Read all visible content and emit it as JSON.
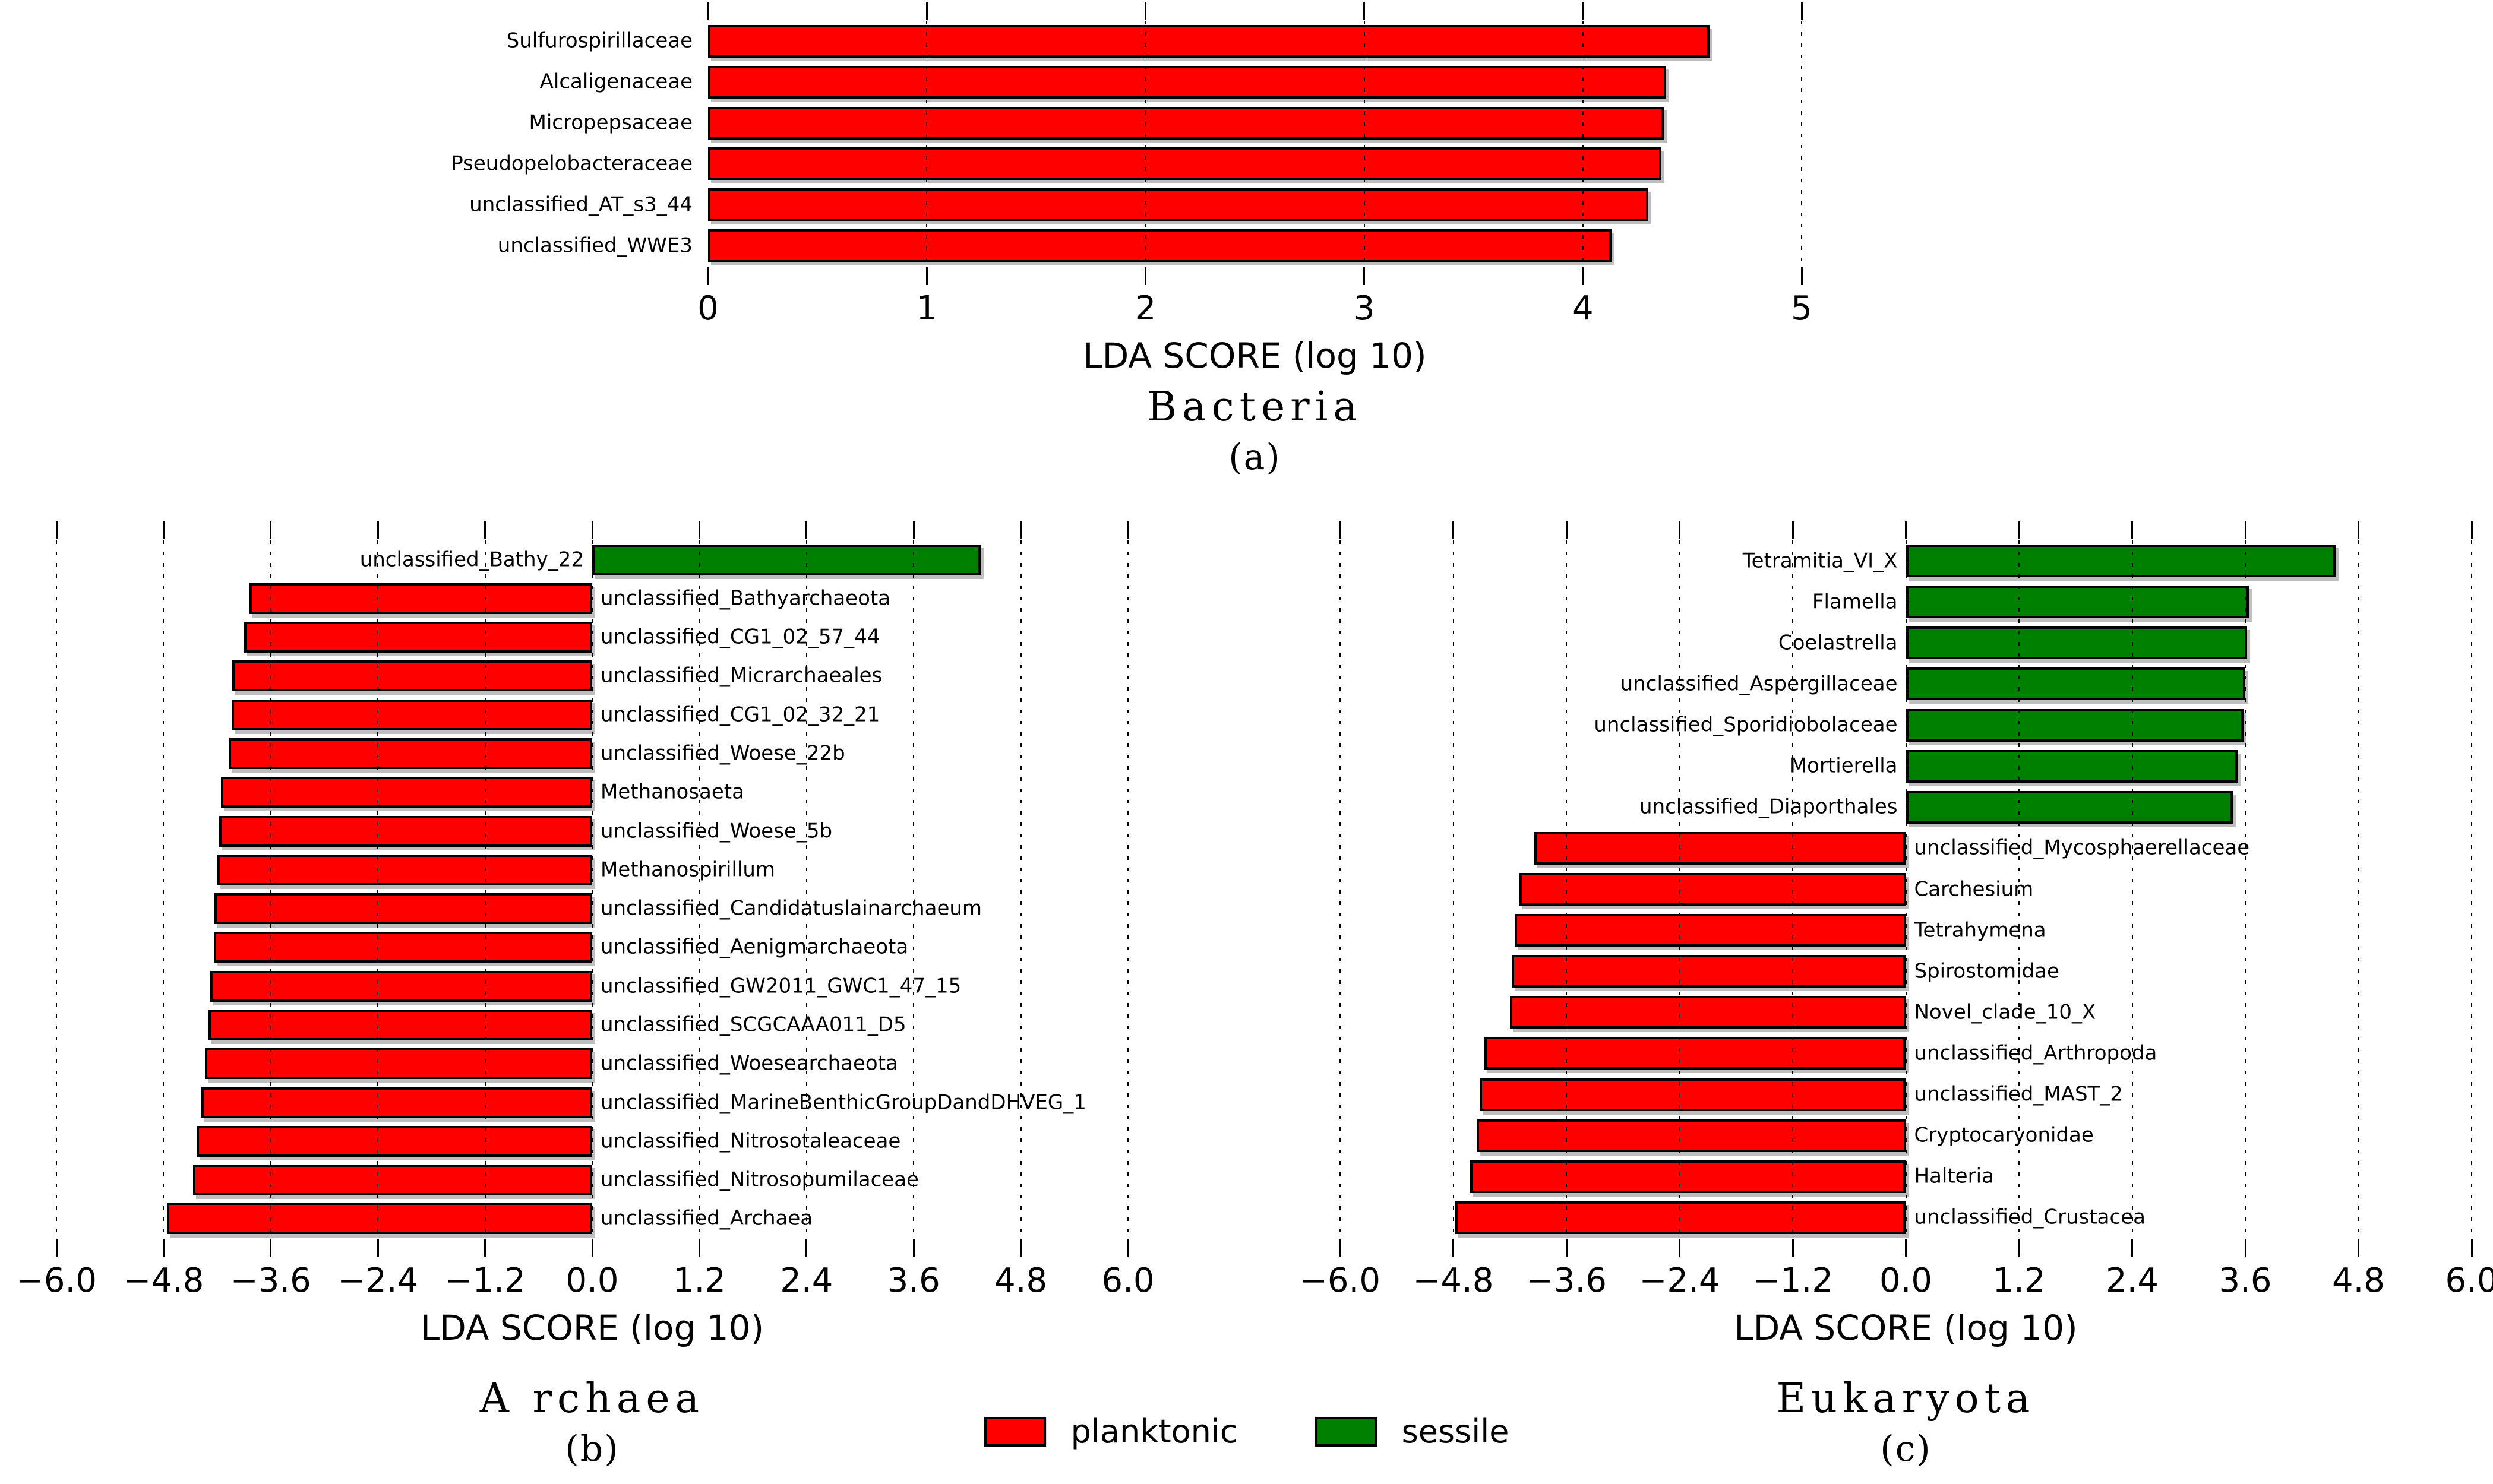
{
  "figure": {
    "background": "#ffffff",
    "description": "LEfSe LDA score horizontal bar charts for Bacteria, Archaea and Eukaryota"
  },
  "colors": {
    "planktonic": "#ff0000",
    "sessile": "#008000",
    "bar_border": "#000000"
  },
  "legend": {
    "items": [
      {
        "label": "planktonic",
        "color": "#ff0000"
      },
      {
        "label": "sessile",
        "color": "#008000"
      }
    ]
  },
  "chart_data": [
    {
      "type": "bar",
      "orientation": "horizontal",
      "title": "Bacteria",
      "panel_label": "(a)",
      "xlabel": "LDA SCORE (log 10)",
      "xlim": [
        0,
        5
      ],
      "xtick_values": [
        0,
        1,
        2,
        3,
        4,
        5
      ],
      "xticks": [
        "0",
        "1",
        "2",
        "3",
        "4",
        "5"
      ],
      "grid_ticks": [
        1,
        2,
        3,
        4,
        5
      ],
      "grid": "dotted vertical",
      "legend_position": "none",
      "rows": [
        {
          "label": "Sulfurospirillaceae",
          "value": 4.58,
          "group": "planktonic"
        },
        {
          "label": "Alcaligenaceae",
          "value": 4.38,
          "group": "planktonic"
        },
        {
          "label": "Micropepsaceae",
          "value": 4.37,
          "group": "planktonic"
        },
        {
          "label": "Pseudopelobacteraceae",
          "value": 4.36,
          "group": "planktonic"
        },
        {
          "label": "unclassified_AT_s3_44",
          "value": 4.3,
          "group": "planktonic"
        },
        {
          "label": "unclassified_WWE3",
          "value": 4.13,
          "group": "planktonic"
        }
      ]
    },
    {
      "type": "bar",
      "orientation": "horizontal",
      "title": "A rchaea",
      "panel_label": "(b)",
      "xlabel": "LDA SCORE (log 10)",
      "xlim": [
        -6.0,
        6.0
      ],
      "xtick_values": [
        -6.0,
        -4.8,
        -3.6,
        -2.4,
        -1.2,
        0.0,
        1.2,
        2.4,
        3.6,
        4.8,
        6.0
      ],
      "xticks": [
        "−6.0",
        "−4.8",
        "−3.6",
        "−2.4",
        "−1.2",
        "0.0",
        "1.2",
        "2.4",
        "3.6",
        "4.8",
        "6.0"
      ],
      "grid_ticks": [
        -6.0,
        -4.8,
        -3.6,
        -2.4,
        -1.2,
        0.0,
        1.2,
        2.4,
        3.6,
        4.8,
        6.0
      ],
      "grid": "dotted vertical",
      "legend_position": "none",
      "rows": [
        {
          "label": "unclassified_Bathy_22",
          "value": 4.35,
          "group": "sessile"
        },
        {
          "label": "unclassified_Bathyarchaeota",
          "value": -3.84,
          "group": "planktonic"
        },
        {
          "label": "unclassified_CG1_02_57_44",
          "value": -3.9,
          "group": "planktonic"
        },
        {
          "label": "unclassified_Micrarchaeales",
          "value": -4.03,
          "group": "planktonic"
        },
        {
          "label": "unclassified_CG1_02_32_21",
          "value": -4.04,
          "group": "planktonic"
        },
        {
          "label": "unclassified_Woese_22b",
          "value": -4.07,
          "group": "planktonic"
        },
        {
          "label": "Methanosaeta",
          "value": -4.16,
          "group": "planktonic"
        },
        {
          "label": "unclassified_Woese_5b",
          "value": -4.18,
          "group": "planktonic"
        },
        {
          "label": "Methanospirillum",
          "value": -4.2,
          "group": "planktonic"
        },
        {
          "label": "unclassified_Candidatuslainarchaeum",
          "value": -4.23,
          "group": "planktonic"
        },
        {
          "label": "unclassified_Aenigmarchaeota",
          "value": -4.24,
          "group": "planktonic"
        },
        {
          "label": "unclassified_GW2011_GWC1_47_15",
          "value": -4.28,
          "group": "planktonic"
        },
        {
          "label": "unclassified_SCGCAAA011_D5",
          "value": -4.3,
          "group": "planktonic"
        },
        {
          "label": "unclassified_Woesearchaeota",
          "value": -4.34,
          "group": "planktonic"
        },
        {
          "label": "unclassified_MarineBenthicGroupDandDHVEG_1",
          "value": -4.38,
          "group": "planktonic"
        },
        {
          "label": "unclassified_Nitrosotaleaceae",
          "value": -4.43,
          "group": "planktonic"
        },
        {
          "label": "unclassified_Nitrosopumilaceae",
          "value": -4.47,
          "group": "planktonic"
        },
        {
          "label": "unclassified_Archaea",
          "value": -4.76,
          "group": "planktonic"
        }
      ]
    },
    {
      "type": "bar",
      "orientation": "horizontal",
      "title": "Eukaryota",
      "panel_label": "(c)",
      "xlabel": "LDA SCORE (log 10)",
      "xlim": [
        -6.0,
        6.0
      ],
      "xtick_values": [
        -6.0,
        -4.8,
        -3.6,
        -2.4,
        -1.2,
        0.0,
        1.2,
        2.4,
        3.6,
        4.8,
        6.0
      ],
      "xticks": [
        "−6.0",
        "−4.8",
        "−3.6",
        "−2.4",
        "−1.2",
        "0.0",
        "1.2",
        "2.4",
        "3.6",
        "4.8",
        "6.0"
      ],
      "grid_ticks": [
        -6.0,
        -4.8,
        -3.6,
        -2.4,
        -1.2,
        0.0,
        1.2,
        2.4,
        3.6,
        4.8,
        6.0
      ],
      "grid": "dotted vertical",
      "legend_position": "none",
      "rows": [
        {
          "label": "Tetramitia_VI_X",
          "value": 4.56,
          "group": "sessile"
        },
        {
          "label": "Flamella",
          "value": 3.64,
          "group": "sessile"
        },
        {
          "label": "Coelastrella",
          "value": 3.62,
          "group": "sessile"
        },
        {
          "label": "unclassified_Aspergillaceae",
          "value": 3.6,
          "group": "sessile"
        },
        {
          "label": "unclassified_Sporidiobolaceae",
          "value": 3.58,
          "group": "sessile"
        },
        {
          "label": "Mortierella",
          "value": 3.52,
          "group": "sessile"
        },
        {
          "label": "unclassified_Diaporthales",
          "value": 3.47,
          "group": "sessile"
        },
        {
          "label": "unclassified_Mycosphaerellaceae",
          "value": -3.94,
          "group": "planktonic"
        },
        {
          "label": "Carchesium",
          "value": -4.1,
          "group": "planktonic"
        },
        {
          "label": "Tetrahymena",
          "value": -4.15,
          "group": "planktonic"
        },
        {
          "label": "Spirostomidae",
          "value": -4.18,
          "group": "planktonic"
        },
        {
          "label": "Novel_clade_10_X",
          "value": -4.2,
          "group": "planktonic"
        },
        {
          "label": "unclassified_Arthropoda",
          "value": -4.47,
          "group": "planktonic"
        },
        {
          "label": "unclassified_MAST_2",
          "value": -4.52,
          "group": "planktonic"
        },
        {
          "label": "Cryptocaryonidae",
          "value": -4.55,
          "group": "planktonic"
        },
        {
          "label": "Halteria",
          "value": -4.62,
          "group": "planktonic"
        },
        {
          "label": "unclassified_Crustacea",
          "value": -4.78,
          "group": "planktonic"
        }
      ]
    }
  ]
}
